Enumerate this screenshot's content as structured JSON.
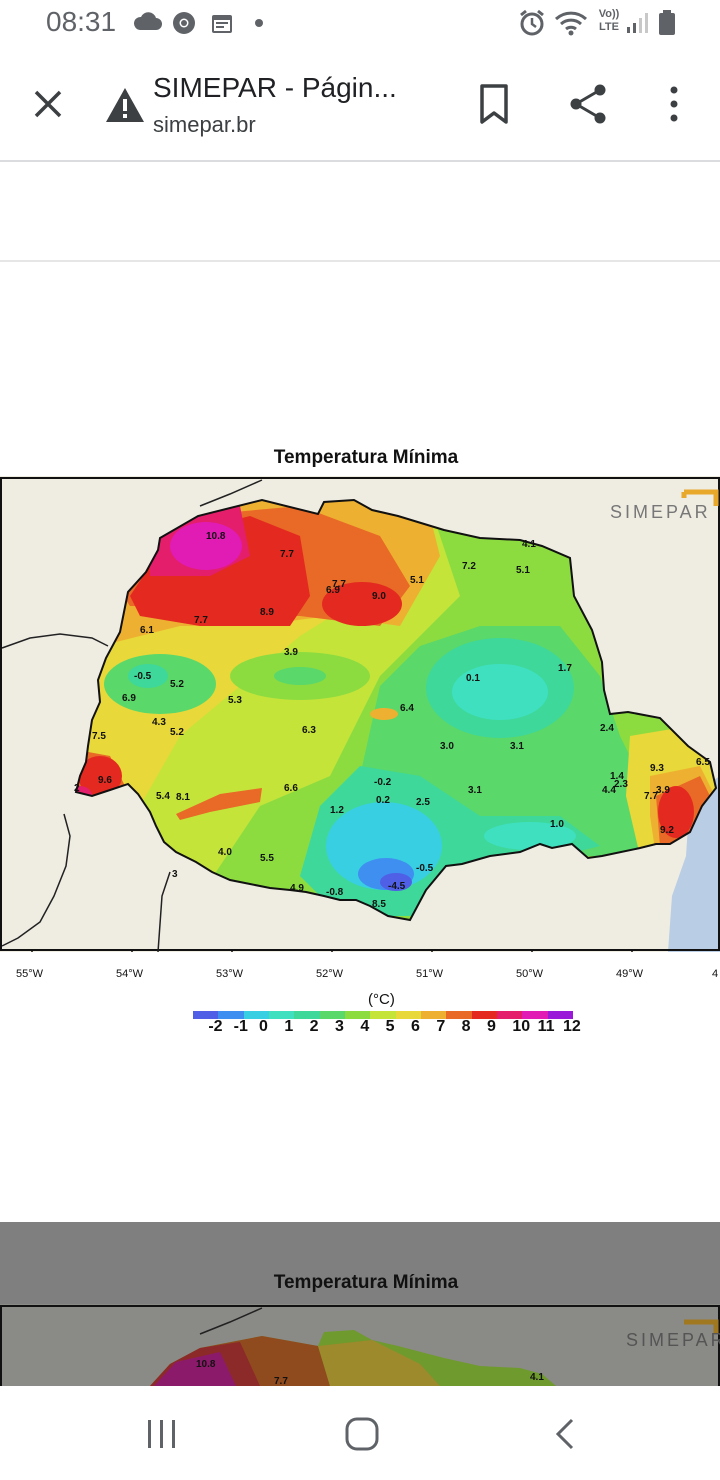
{
  "status_bar": {
    "time": "08:31",
    "network_label_top": "Vo))",
    "network_label_bottom": "LTE",
    "icons": [
      "cloud-icon",
      "chrome-icon",
      "calendar-icon",
      "dot-icon",
      "alarm-icon",
      "wifi-icon",
      "signal-icon",
      "battery-icon"
    ]
  },
  "toolbar": {
    "title": "SIMEPAR - Págin...",
    "url": "simepar.br",
    "icons": [
      "close-icon",
      "warning-icon",
      "bookmark-icon",
      "share-icon",
      "more-vert-icon"
    ]
  },
  "map": {
    "title": "Temperatura Mínima",
    "logo_text": "SIMEPAR",
    "unit": "(°C)",
    "longitudes": [
      "55°W",
      "54°W",
      "53°W",
      "52°W",
      "51°W",
      "50°W",
      "49°W",
      "4"
    ],
    "colorbar_labels": [
      "-2",
      "-1",
      "0",
      "1",
      "2",
      "3",
      "4",
      "5",
      "6",
      "7",
      "8",
      "9",
      "10",
      "11",
      "12"
    ],
    "colorbar_colors": [
      "#4f5fe6",
      "#3f8ff0",
      "#38cfe2",
      "#3ee0c0",
      "#3ed89a",
      "#5ad86a",
      "#8cdc40",
      "#c4e43a",
      "#e8d83a",
      "#eeb030",
      "#e86a26",
      "#e42a20",
      "#e41e6a",
      "#e01cb4",
      "#9a18d8"
    ],
    "station_values": [
      "10.8",
      "7.7",
      "6.9",
      "7.7",
      "9.0",
      "5.1",
      "7.2",
      "5.1",
      "4.1",
      "6.1",
      "7.7",
      "8.9",
      "3.9",
      "1.7",
      "-0.5",
      "5.2",
      "6.9",
      "5.3",
      "0.1",
      "6.4",
      "2.4",
      "4.3",
      "5.2",
      "7.5",
      "6.3",
      "3.0",
      "3.1",
      "9.3",
      "6.5",
      "9.6",
      "-0.2",
      "1.4",
      "4.4",
      "2.3",
      "7.7",
      "3.9",
      "5.4",
      "8.1",
      "6.6",
      "0.2",
      "2.5",
      "3.1",
      "1.2",
      "1.0",
      "9.2",
      "4.0",
      "5.5",
      "-0.5",
      "-4.5",
      "4.9",
      "-0.8",
      "8.5",
      "2",
      "3"
    ]
  },
  "second_map": {
    "title": "Temperatura Mínima",
    "logo_text": "SIMEPAR",
    "station_values": [
      "10.8",
      "7.7",
      "4.1"
    ]
  },
  "nav_bar": {
    "icons": [
      "recent-apps-icon",
      "home-icon",
      "back-icon"
    ]
  }
}
